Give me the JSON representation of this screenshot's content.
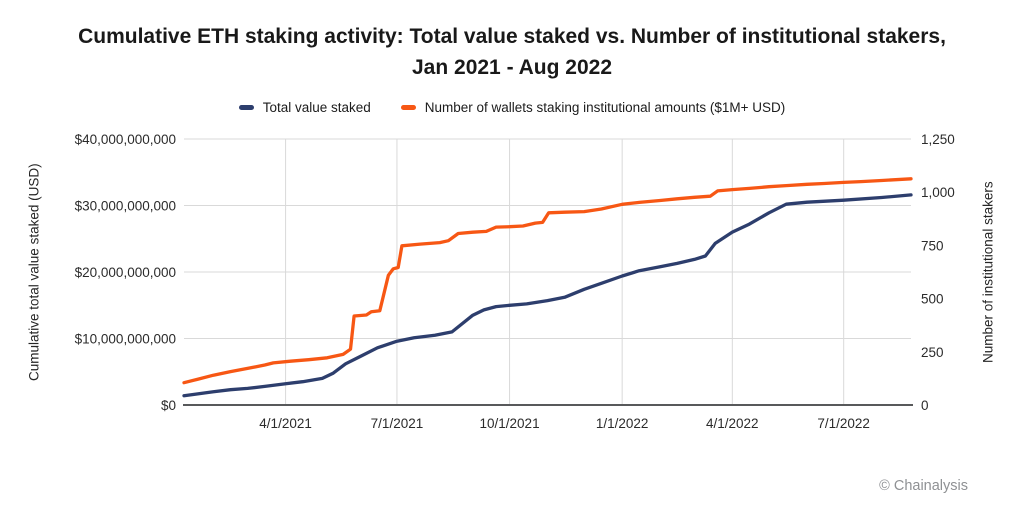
{
  "title": {
    "line1": "Cumulative ETH staking activity: Total value staked vs. Number of institutional stakers,",
    "line2": "Jan 2021 - Aug 2022"
  },
  "legend": [
    {
      "label": "Total value staked",
      "color": "#2d3e6d"
    },
    {
      "label": "Number of wallets staking institutional amounts ($1M+ USD)",
      "color": "#f75714"
    }
  ],
  "footer": {
    "credit": "© Chainalysis"
  },
  "chart_data": {
    "type": "line",
    "title": "Cumulative ETH staking activity: Total value staked vs. Number of institutional stakers, Jan 2021 - Aug 2022",
    "legend_position": "top",
    "grid": {
      "horizontal": true,
      "vertical": true
    },
    "colors": {
      "grid": "#d9d9d9",
      "axis": "#58595b",
      "tick_text": "#2b2b2b",
      "background": "#ffffff"
    },
    "x_range": [
      "2021-01-08",
      "2022-08-25"
    ],
    "x_ticks": [
      {
        "date": "2021-04-01",
        "label": "4/1/2021"
      },
      {
        "date": "2021-07-01",
        "label": "7/1/2021"
      },
      {
        "date": "2021-10-01",
        "label": "10/1/2021"
      },
      {
        "date": "2022-01-01",
        "label": "1/1/2022"
      },
      {
        "date": "2022-04-01",
        "label": "4/1/2022"
      },
      {
        "date": "2022-07-01",
        "label": "7/1/2022"
      }
    ],
    "y_left": {
      "label": "Cumulative total value staked (USD)",
      "max": 40000000000,
      "ticks": [
        {
          "value": 0,
          "label": "$0"
        },
        {
          "value": 10000000000,
          "label": "$10,000,000,000"
        },
        {
          "value": 20000000000,
          "label": "$20,000,000,000"
        },
        {
          "value": 30000000000,
          "label": "$30,000,000,000"
        },
        {
          "value": 40000000000,
          "label": "$40,000,000,000"
        }
      ]
    },
    "y_right": {
      "label": "Number of institutional stakers",
      "max": 1250,
      "ticks": [
        {
          "value": 0,
          "label": "0"
        },
        {
          "value": 250,
          "label": "250"
        },
        {
          "value": 500,
          "label": "500"
        },
        {
          "value": 750,
          "label": "750"
        },
        {
          "value": 1000,
          "label": "1,000"
        },
        {
          "value": 1250,
          "label": "1,250"
        }
      ]
    },
    "series": [
      {
        "id": "total-value-staked",
        "name": "Total value staked",
        "axis": "left",
        "color": "#2d3e6d",
        "points": [
          [
            "2021-01-08",
            1400000000
          ],
          [
            "2021-01-20",
            1700000000
          ],
          [
            "2021-02-01",
            2000000000
          ],
          [
            "2021-02-15",
            2300000000
          ],
          [
            "2021-03-01",
            2500000000
          ],
          [
            "2021-03-15",
            2800000000
          ],
          [
            "2021-04-01",
            3200000000
          ],
          [
            "2021-04-15",
            3500000000
          ],
          [
            "2021-05-01",
            4000000000
          ],
          [
            "2021-05-10",
            4800000000
          ],
          [
            "2021-05-20",
            6200000000
          ],
          [
            "2021-06-01",
            7300000000
          ],
          [
            "2021-06-15",
            8600000000
          ],
          [
            "2021-07-01",
            9600000000
          ],
          [
            "2021-07-15",
            10100000000
          ],
          [
            "2021-08-01",
            10500000000
          ],
          [
            "2021-08-15",
            11000000000
          ],
          [
            "2021-09-01",
            13500000000
          ],
          [
            "2021-09-10",
            14300000000
          ],
          [
            "2021-09-20",
            14800000000
          ],
          [
            "2021-10-01",
            15000000000
          ],
          [
            "2021-10-15",
            15200000000
          ],
          [
            "2021-11-01",
            15700000000
          ],
          [
            "2021-11-15",
            16200000000
          ],
          [
            "2021-12-01",
            17400000000
          ],
          [
            "2021-12-15",
            18300000000
          ],
          [
            "2022-01-01",
            19400000000
          ],
          [
            "2022-01-15",
            20200000000
          ],
          [
            "2022-02-01",
            20800000000
          ],
          [
            "2022-02-15",
            21300000000
          ],
          [
            "2022-03-01",
            21900000000
          ],
          [
            "2022-03-10",
            22400000000
          ],
          [
            "2022-03-18",
            24300000000
          ],
          [
            "2022-04-01",
            26000000000
          ],
          [
            "2022-04-15",
            27200000000
          ],
          [
            "2022-05-01",
            28900000000
          ],
          [
            "2022-05-15",
            30200000000
          ],
          [
            "2022-06-01",
            30500000000
          ],
          [
            "2022-07-01",
            30800000000
          ],
          [
            "2022-08-01",
            31200000000
          ],
          [
            "2022-08-25",
            31600000000
          ]
        ]
      },
      {
        "id": "institutional-wallets",
        "name": "Number of wallets staking institutional amounts ($1M+ USD)",
        "axis": "right",
        "color": "#f75714",
        "points": [
          [
            "2021-01-08",
            105
          ],
          [
            "2021-01-20",
            122
          ],
          [
            "2021-02-01",
            140
          ],
          [
            "2021-02-15",
            157
          ],
          [
            "2021-03-01",
            172
          ],
          [
            "2021-03-15",
            188
          ],
          [
            "2021-03-22",
            198
          ],
          [
            "2021-04-05",
            206
          ],
          [
            "2021-04-20",
            213
          ],
          [
            "2021-05-05",
            222
          ],
          [
            "2021-05-18",
            238
          ],
          [
            "2021-05-24",
            262
          ],
          [
            "2021-05-27",
            418
          ],
          [
            "2021-06-06",
            423
          ],
          [
            "2021-06-10",
            438
          ],
          [
            "2021-06-17",
            443
          ],
          [
            "2021-06-24",
            610
          ],
          [
            "2021-06-28",
            640
          ],
          [
            "2021-07-02",
            646
          ],
          [
            "2021-07-05",
            748
          ],
          [
            "2021-07-20",
            756
          ],
          [
            "2021-08-05",
            763
          ],
          [
            "2021-08-12",
            772
          ],
          [
            "2021-08-20",
            806
          ],
          [
            "2021-09-01",
            812
          ],
          [
            "2021-09-12",
            816
          ],
          [
            "2021-09-20",
            836
          ],
          [
            "2021-10-01",
            838
          ],
          [
            "2021-10-12",
            841
          ],
          [
            "2021-10-22",
            855
          ],
          [
            "2021-10-28",
            858
          ],
          [
            "2021-11-02",
            903
          ],
          [
            "2021-11-15",
            906
          ],
          [
            "2021-12-01",
            909
          ],
          [
            "2021-12-15",
            921
          ],
          [
            "2022-01-01",
            943
          ],
          [
            "2022-01-15",
            952
          ],
          [
            "2022-02-01",
            961
          ],
          [
            "2022-02-15",
            969
          ],
          [
            "2022-03-01",
            976
          ],
          [
            "2022-03-14",
            981
          ],
          [
            "2022-03-20",
            1006
          ],
          [
            "2022-04-01",
            1012
          ],
          [
            "2022-04-15",
            1018
          ],
          [
            "2022-05-01",
            1026
          ],
          [
            "2022-05-15",
            1031
          ],
          [
            "2022-06-01",
            1037
          ],
          [
            "2022-06-15",
            1041
          ],
          [
            "2022-07-01",
            1046
          ],
          [
            "2022-07-15",
            1050
          ],
          [
            "2022-08-01",
            1055
          ],
          [
            "2022-08-25",
            1063
          ]
        ]
      }
    ]
  }
}
